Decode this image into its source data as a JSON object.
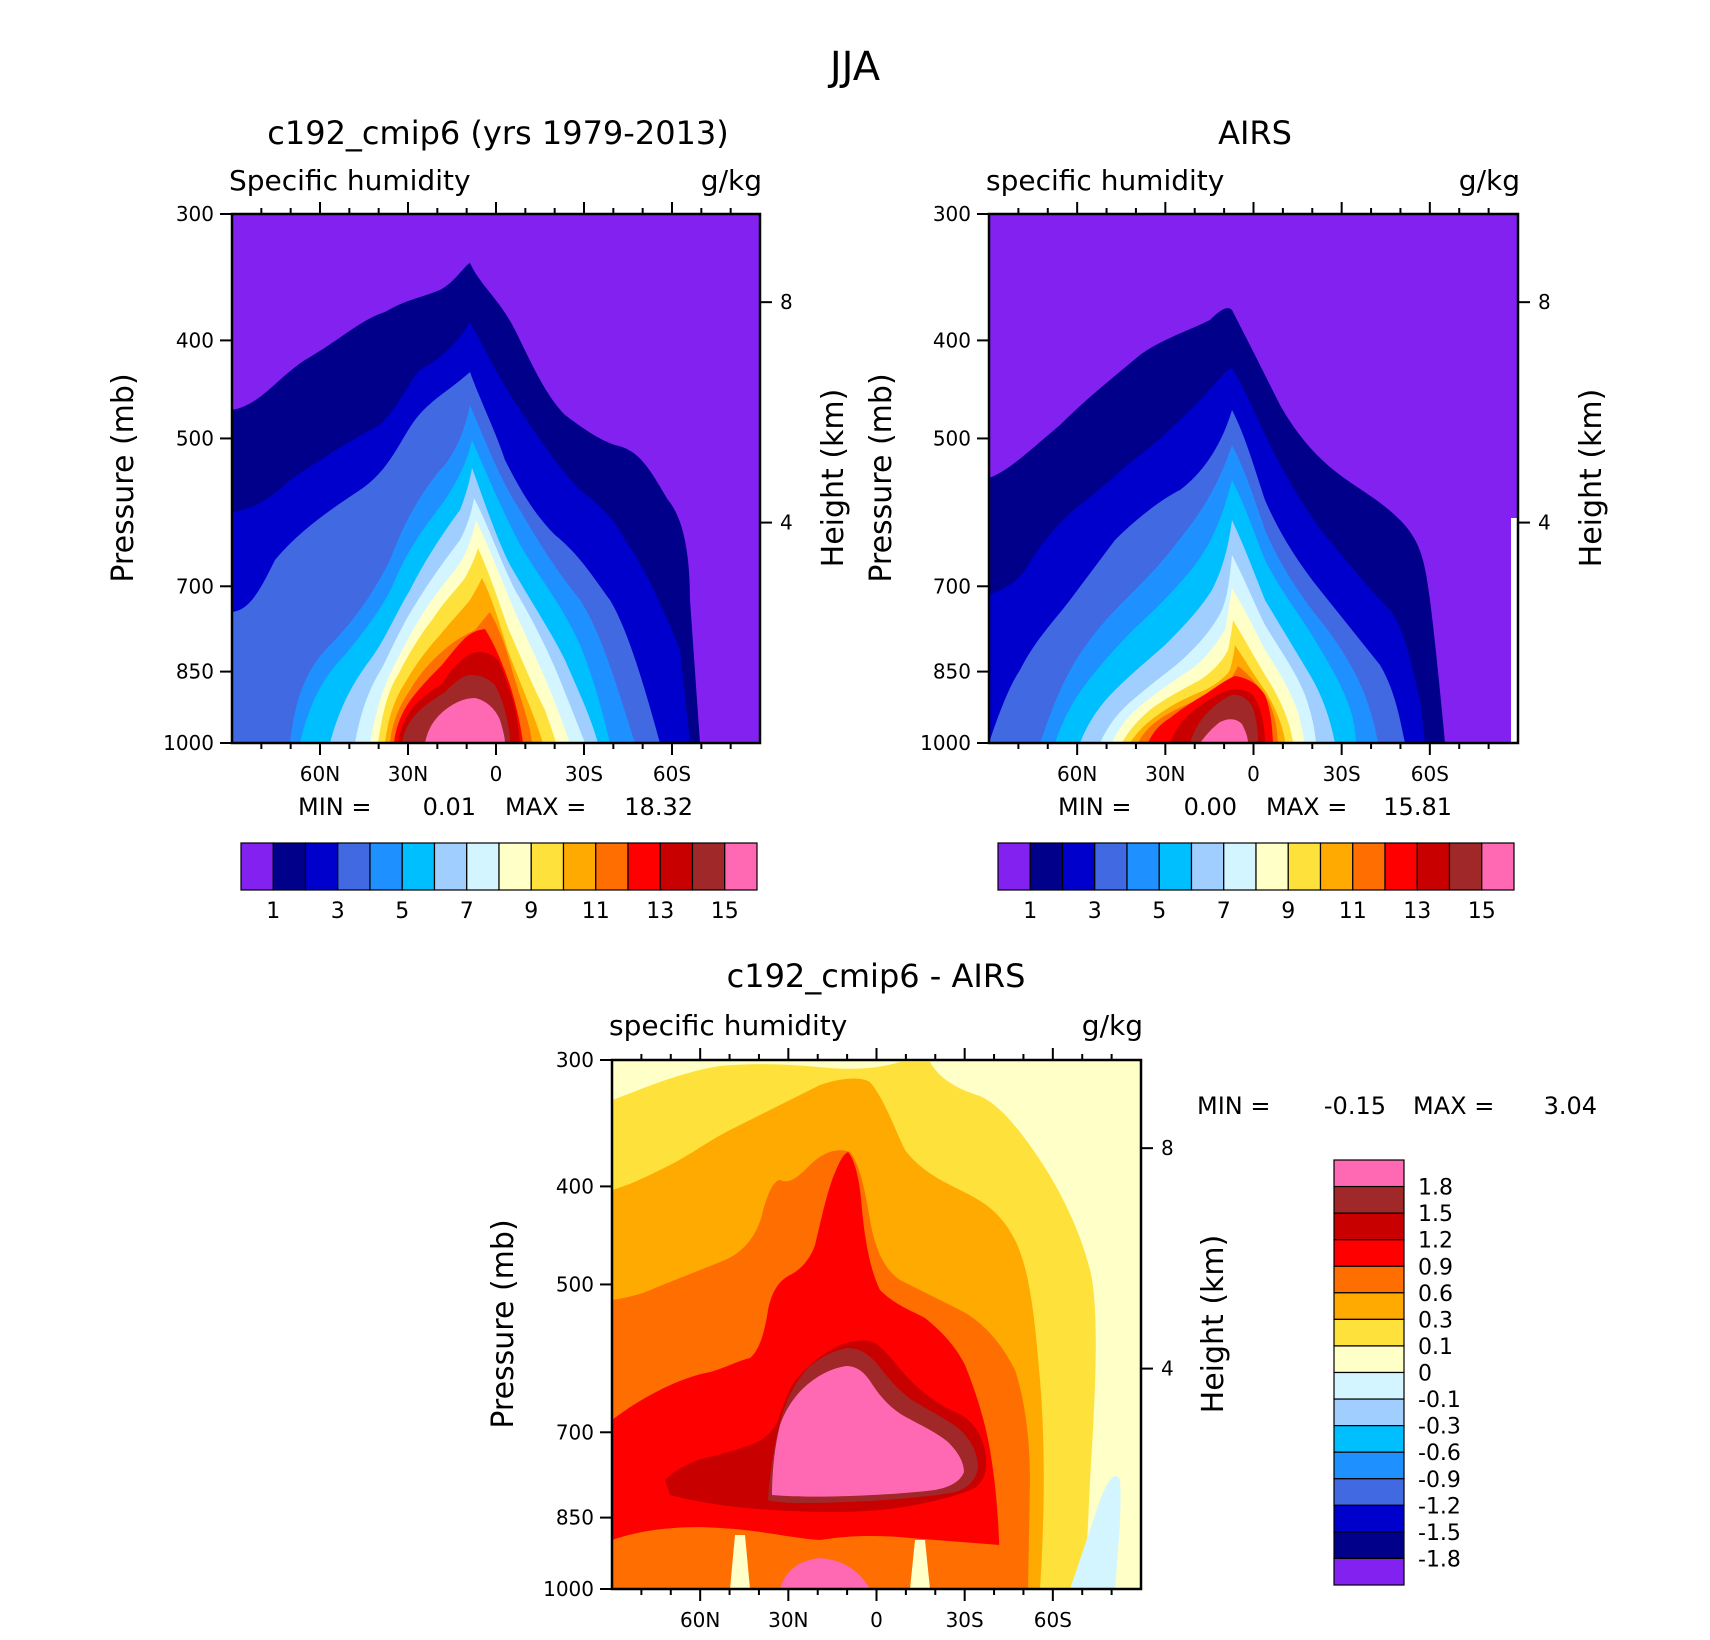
{
  "page_title": "JJA",
  "chart_data": [
    {
      "id": "model",
      "type": "contour",
      "title": "c192_cmip6 (yrs 1979-2013)",
      "variable_label": "Specific humidity",
      "units": "g/kg",
      "ylabel": "Pressure (mb)",
      "y2label": "Height (km)",
      "y_ticks": [
        "300",
        "400",
        "500",
        "700",
        "850",
        "1000"
      ],
      "y_tick_values": [
        300,
        400,
        500,
        700,
        850,
        1000
      ],
      "ylim": [
        1000,
        300
      ],
      "y2_ticks": [
        "8",
        "4"
      ],
      "y2_tick_values": [
        8,
        4
      ],
      "x_ticks": [
        "60N",
        "30N",
        "0",
        "30S",
        "60S"
      ],
      "x_tick_values": [
        60,
        30,
        0,
        -30,
        -60
      ],
      "xlim": [
        90,
        -90
      ],
      "min_label": "MIN =",
      "min_value": "0.01",
      "max_label": "MAX =",
      "max_value": "18.32",
      "colorbar_labels": [
        "1",
        "3",
        "5",
        "7",
        "9",
        "11",
        "13",
        "15"
      ],
      "levels": [
        1,
        2,
        3,
        4,
        5,
        6,
        7,
        8,
        9,
        10,
        11,
        12,
        13,
        14,
        15
      ],
      "colors": [
        "#8322f0",
        "#00008a",
        "#0000cd",
        "#4169e1",
        "#1e90ff",
        "#00bfff",
        "#a0cfff",
        "#d2f5ff",
        "#ffffc8",
        "#ffe13c",
        "#ffaa00",
        "#ff6e00",
        "#ff0000",
        "#c80000",
        "#a02828",
        "#ff69b4"
      ]
    },
    {
      "id": "obs",
      "type": "contour",
      "title": "AIRS",
      "variable_label": "specific humidity",
      "units": "g/kg",
      "ylabel": "Pressure (mb)",
      "y2label": "Height (km)",
      "y_ticks": [
        "300",
        "400",
        "500",
        "700",
        "850",
        "1000"
      ],
      "y_tick_values": [
        300,
        400,
        500,
        700,
        850,
        1000
      ],
      "ylim": [
        1000,
        300
      ],
      "y2_ticks": [
        "8",
        "4"
      ],
      "y2_tick_values": [
        8,
        4
      ],
      "x_ticks": [
        "60N",
        "30N",
        "0",
        "30S",
        "60S"
      ],
      "x_tick_values": [
        60,
        30,
        0,
        -30,
        -60
      ],
      "xlim": [
        90,
        -90
      ],
      "min_label": "MIN =",
      "min_value": "0.00",
      "max_label": "MAX =",
      "max_value": "15.81",
      "colorbar_labels": [
        "1",
        "3",
        "5",
        "7",
        "9",
        "11",
        "13",
        "15"
      ],
      "levels": [
        1,
        2,
        3,
        4,
        5,
        6,
        7,
        8,
        9,
        10,
        11,
        12,
        13,
        14,
        15
      ],
      "colors": [
        "#8322f0",
        "#00008a",
        "#0000cd",
        "#4169e1",
        "#1e90ff",
        "#00bfff",
        "#a0cfff",
        "#d2f5ff",
        "#ffffc8",
        "#ffe13c",
        "#ffaa00",
        "#ff6e00",
        "#ff0000",
        "#c80000",
        "#a02828",
        "#ff69b4"
      ]
    },
    {
      "id": "diff",
      "type": "contour",
      "title": "c192_cmip6 - AIRS",
      "variable_label": "specific humidity",
      "units": "g/kg",
      "ylabel": "Pressure (mb)",
      "y2label": "Height (km)",
      "y_ticks": [
        "300",
        "400",
        "500",
        "700",
        "850",
        "1000"
      ],
      "y_tick_values": [
        300,
        400,
        500,
        700,
        850,
        1000
      ],
      "ylim": [
        1000,
        300
      ],
      "y2_ticks": [
        "8",
        "4"
      ],
      "y2_tick_values": [
        8,
        4
      ],
      "x_ticks": [
        "60N",
        "30N",
        "0",
        "30S",
        "60S"
      ],
      "x_tick_values": [
        60,
        30,
        0,
        -30,
        -60
      ],
      "xlim": [
        90,
        -90
      ],
      "min_label": "MIN =",
      "min_value": "-0.15",
      "max_label": "MAX =",
      "max_value": "3.04",
      "colorbar_labels": [
        "1.8",
        "1.5",
        "1.2",
        "0.9",
        "0.6",
        "0.3",
        "0.1",
        "0",
        "-0.1",
        "-0.3",
        "-0.6",
        "-0.9",
        "-1.2",
        "-1.5",
        "-1.8"
      ],
      "levels": [
        1.8,
        1.5,
        1.2,
        0.9,
        0.6,
        0.3,
        0.1,
        0,
        -0.1,
        -0.3,
        -0.6,
        -0.9,
        -1.2,
        -1.5,
        -1.8
      ],
      "colors": [
        "#ff69b4",
        "#a02828",
        "#c80000",
        "#ff0000",
        "#ff6e00",
        "#ffaa00",
        "#ffe13c",
        "#ffffc8",
        "#d2f5ff",
        "#a0cfff",
        "#00bfff",
        "#1e90ff",
        "#4169e1",
        "#0000cd",
        "#00008a",
        "#8322f0"
      ]
    }
  ]
}
